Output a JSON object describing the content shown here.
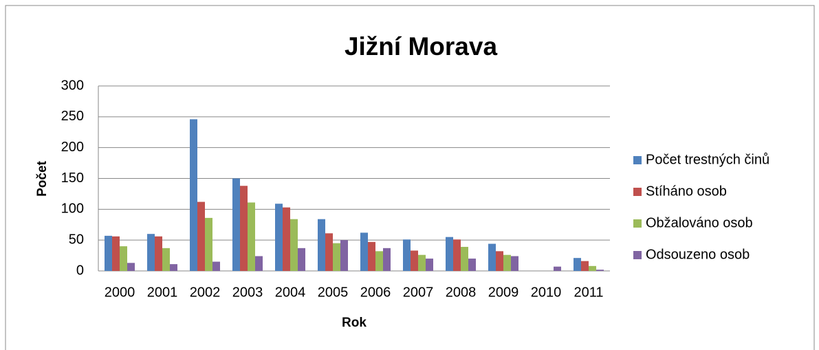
{
  "chart_data": {
    "type": "bar",
    "title": "Jižní Morava",
    "x_label": "Rok",
    "y_label": "Počet",
    "categories": [
      "2000",
      "2001",
      "2002",
      "2003",
      "2004",
      "2005",
      "2006",
      "2007",
      "2008",
      "2009",
      "2010",
      "2011"
    ],
    "series": [
      {
        "name": "Počet trestných činů",
        "color": "#4f81bd",
        "values": [
          57,
          60,
          246,
          150,
          109,
          84,
          62,
          51,
          55,
          44,
          0,
          21
        ]
      },
      {
        "name": "Stíháno osob",
        "color": "#c0504d",
        "values": [
          56,
          56,
          112,
          138,
          103,
          61,
          47,
          33,
          51,
          32,
          0,
          16
        ]
      },
      {
        "name": "Obžalováno osob",
        "color": "#9bbb59",
        "values": [
          40,
          37,
          86,
          111,
          84,
          45,
          32,
          26,
          39,
          26,
          0,
          8
        ]
      },
      {
        "name": "Odsouzeno osob",
        "color": "#8064a2",
        "values": [
          13,
          11,
          15,
          24,
          37,
          50,
          37,
          20,
          20,
          24,
          7,
          2
        ]
      }
    ],
    "ylim": [
      0,
      300
    ],
    "yticks": [
      0,
      50,
      100,
      150,
      200,
      250,
      300
    ],
    "grid": true,
    "legend": "right"
  }
}
